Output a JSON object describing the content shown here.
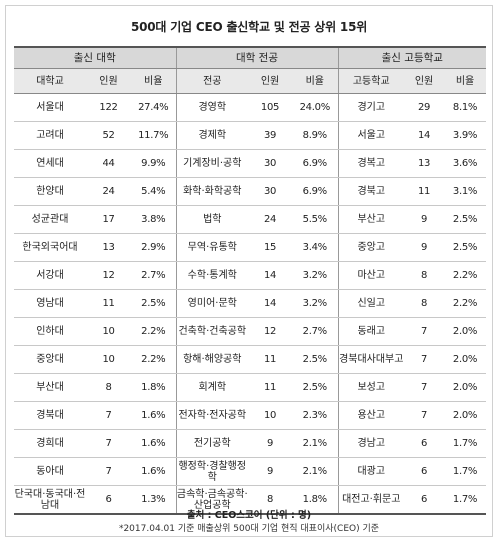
{
  "title": "500대 기업 CEO 출신학교 및 전공 상위 15위",
  "groups": {
    "university": "출신 대학",
    "major": "대학 전공",
    "highschool": "출신 고등학교"
  },
  "columns": {
    "university": "대학교",
    "major": "전공",
    "highschool": "고등학교",
    "count": "인원",
    "ratio": "비율"
  },
  "rows": [
    {
      "univ": "서울대",
      "univ_n": "122",
      "univ_p": "27.4%",
      "major": "경영학",
      "major_n": "105",
      "major_p": "24.0%",
      "hs": "경기고",
      "hs_n": "29",
      "hs_p": "8.1%"
    },
    {
      "univ": "고려대",
      "univ_n": "52",
      "univ_p": "11.7%",
      "major": "경제학",
      "major_n": "39",
      "major_p": "8.9%",
      "hs": "서울고",
      "hs_n": "14",
      "hs_p": "3.9%"
    },
    {
      "univ": "연세대",
      "univ_n": "44",
      "univ_p": "9.9%",
      "major": "기계장비·공학",
      "major_n": "30",
      "major_p": "6.9%",
      "hs": "경복고",
      "hs_n": "13",
      "hs_p": "3.6%"
    },
    {
      "univ": "한양대",
      "univ_n": "24",
      "univ_p": "5.4%",
      "major": "화학·화학공학",
      "major_n": "30",
      "major_p": "6.9%",
      "hs": "경북고",
      "hs_n": "11",
      "hs_p": "3.1%"
    },
    {
      "univ": "성균관대",
      "univ_n": "17",
      "univ_p": "3.8%",
      "major": "법학",
      "major_n": "24",
      "major_p": "5.5%",
      "hs": "부산고",
      "hs_n": "9",
      "hs_p": "2.5%"
    },
    {
      "univ": "한국외국어대",
      "univ_n": "13",
      "univ_p": "2.9%",
      "major": "무역·유통학",
      "major_n": "15",
      "major_p": "3.4%",
      "hs": "중앙고",
      "hs_n": "9",
      "hs_p": "2.5%"
    },
    {
      "univ": "서강대",
      "univ_n": "12",
      "univ_p": "2.7%",
      "major": "수학·통계학",
      "major_n": "14",
      "major_p": "3.2%",
      "hs": "마산고",
      "hs_n": "8",
      "hs_p": "2.2%"
    },
    {
      "univ": "영남대",
      "univ_n": "11",
      "univ_p": "2.5%",
      "major": "영미어·문학",
      "major_n": "14",
      "major_p": "3.2%",
      "hs": "신일고",
      "hs_n": "8",
      "hs_p": "2.2%"
    },
    {
      "univ": "인하대",
      "univ_n": "10",
      "univ_p": "2.2%",
      "major": "건축학·건축공학",
      "major_n": "12",
      "major_p": "2.7%",
      "hs": "동래고",
      "hs_n": "7",
      "hs_p": "2.0%"
    },
    {
      "univ": "중앙대",
      "univ_n": "10",
      "univ_p": "2.2%",
      "major": "항해·해양공학",
      "major_n": "11",
      "major_p": "2.5%",
      "hs": "경북대사대부고",
      "hs_n": "7",
      "hs_p": "2.0%"
    },
    {
      "univ": "부산대",
      "univ_n": "8",
      "univ_p": "1.8%",
      "major": "회계학",
      "major_n": "11",
      "major_p": "2.5%",
      "hs": "보성고",
      "hs_n": "7",
      "hs_p": "2.0%"
    },
    {
      "univ": "경북대",
      "univ_n": "7",
      "univ_p": "1.6%",
      "major": "전자학·전자공학",
      "major_n": "10",
      "major_p": "2.3%",
      "hs": "용산고",
      "hs_n": "7",
      "hs_p": "2.0%"
    },
    {
      "univ": "경희대",
      "univ_n": "7",
      "univ_p": "1.6%",
      "major": "전기공학",
      "major_n": "9",
      "major_p": "2.1%",
      "hs": "경남고",
      "hs_n": "6",
      "hs_p": "1.7%"
    },
    {
      "univ": "동아대",
      "univ_n": "7",
      "univ_p": "1.6%",
      "major": "행정학·경찰행정학",
      "major_n": "9",
      "major_p": "2.1%",
      "hs": "대광고",
      "hs_n": "6",
      "hs_p": "1.7%"
    },
    {
      "univ": "단국대·동국대·전남대",
      "univ_n": "6",
      "univ_p": "1.3%",
      "major": "금속학·금속공학·산업공학",
      "major_n": "8",
      "major_p": "1.8%",
      "hs": "대전고·휘문고",
      "hs_n": "6",
      "hs_p": "1.7%"
    }
  ],
  "source": "출처 : CEO스코어 (단위 : 명)",
  "note": "*2017.04.01 기준 매출상위 500대 기업 현직 대표이사(CEO) 기준"
}
